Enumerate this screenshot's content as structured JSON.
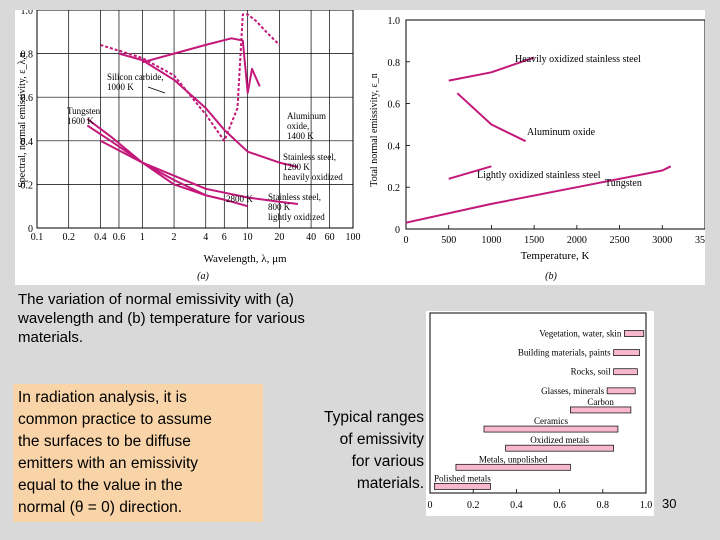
{
  "caption": {
    "line1": "The variation of normal emissivity with (a)",
    "line2": "wavelength and (b) temperature for various",
    "line3": "materials."
  },
  "note": {
    "line1": "In radiation analysis, it is",
    "line2": "common practice to assume",
    "line3": "the surfaces to be diffuse",
    "line4": "emitters with an emissivity",
    "line5": "equal to the value in the",
    "line6": "normal (θ = 0) direction."
  },
  "ranges_caption": {
    "line1": "Typical ranges",
    "line2": "of emissivity",
    "line3": "for various",
    "line4": "materials."
  },
  "slide_number": "30",
  "colors": {
    "curve": "#c3187a",
    "bar_fill": "#f6b7cf",
    "note_bg": "#f9d4a8",
    "page_bg": "#d9d9d9"
  },
  "chart_data": [
    {
      "type": "line",
      "panel_label": "(a)",
      "xlabel": "Wavelength, λ, μm",
      "ylabel": "Spectral, normal emissivity, ε_λ,n",
      "xscale": "log",
      "xlim": [
        0.1,
        100
      ],
      "ylim": [
        0,
        1.0
      ],
      "x_ticks": [
        "0.1",
        "0.2",
        "0.4",
        "0.6",
        "1",
        "2",
        "4",
        "6",
        "10",
        "20",
        "40",
        "60",
        "100"
      ],
      "y_ticks": [
        "0",
        "0.2",
        "0.4",
        "0.6",
        "0.8",
        "1.0"
      ],
      "annotations": [
        "Silicon carbide, 1000 K",
        "Tungsten 1600 K",
        "Aluminum oxide, 1400 K",
        "Stainless steel, 1200 K heavily oxidized",
        "2800 K",
        "Stainless steel, 800 K lightly oxidized"
      ],
      "series": [
        {
          "name": "Silicon carbide, 1000 K",
          "x": [
            1,
            2,
            4,
            7,
            9,
            10,
            11,
            13
          ],
          "y": [
            0.76,
            0.8,
            0.84,
            0.87,
            0.86,
            0.62,
            0.73,
            0.65
          ]
        },
        {
          "name": "Aluminum oxide, 1400 K",
          "x": [
            0.4,
            1,
            2,
            4,
            6,
            8,
            9,
            10,
            12,
            15,
            20
          ],
          "y": [
            0.84,
            0.78,
            0.7,
            0.52,
            0.4,
            0.55,
            0.98,
            0.98,
            0.95,
            0.9,
            0.84
          ]
        },
        {
          "name": "Stainless steel, 1200 K heavily oxidized",
          "x": [
            0.6,
            1,
            2,
            4,
            6,
            10,
            20,
            30
          ],
          "y": [
            0.8,
            0.77,
            0.68,
            0.55,
            0.45,
            0.35,
            0.3,
            0.28
          ]
        },
        {
          "name": "Tungsten 1600 K",
          "x": [
            0.3,
            0.5,
            1,
            2,
            4,
            6,
            10
          ],
          "y": [
            0.5,
            0.42,
            0.3,
            0.22,
            0.15,
            0.13,
            0.1
          ]
        },
        {
          "name": "Tungsten 2800 K",
          "x": [
            0.3,
            0.5,
            1,
            2,
            4,
            6
          ],
          "y": [
            0.47,
            0.4,
            0.3,
            0.2,
            0.15,
            0.13
          ]
        },
        {
          "name": "Stainless steel, 800 K lightly oxidized",
          "x": [
            0.4,
            1,
            2,
            4,
            10,
            20,
            30
          ],
          "y": [
            0.4,
            0.3,
            0.24,
            0.18,
            0.14,
            0.12,
            0.11
          ]
        }
      ]
    },
    {
      "type": "line",
      "panel_label": "(b)",
      "xlabel": "Temperature, K",
      "ylabel": "Total normal emissivity, ε_n",
      "xlim": [
        0,
        3500
      ],
      "ylim": [
        0,
        1.0
      ],
      "x_ticks": [
        "0",
        "500",
        "1000",
        "1500",
        "2000",
        "2500",
        "3000",
        "3500"
      ],
      "y_ticks": [
        "0",
        "0.2",
        "0.4",
        "0.6",
        "0.8",
        "1.0"
      ],
      "series": [
        {
          "name": "Heavily oxidized stainless steel",
          "x": [
            500,
            1000,
            1500
          ],
          "y": [
            0.71,
            0.75,
            0.82
          ]
        },
        {
          "name": "Aluminum oxide",
          "x": [
            600,
            1000,
            1400
          ],
          "y": [
            0.65,
            0.5,
            0.42
          ]
        },
        {
          "name": "Lightly oxidized stainless steel",
          "x": [
            500,
            1000
          ],
          "y": [
            0.24,
            0.3
          ]
        },
        {
          "name": "Tungsten",
          "x": [
            0,
            1000,
            2000,
            3000,
            3100
          ],
          "y": [
            0.03,
            0.12,
            0.2,
            0.28,
            0.3
          ]
        }
      ]
    },
    {
      "type": "bar",
      "orientation": "horizontal",
      "range_bars": true,
      "xlim": [
        0,
        1.0
      ],
      "x_ticks": [
        "0",
        "0.2",
        "0.4",
        "0.6",
        "0.8",
        "1.0"
      ],
      "categories": [
        "Vegetation, water, skin",
        "Building materials, paints",
        "Rocks, soil",
        "Glasses, minerals",
        "Carbon",
        "Ceramics",
        "Oxidized metals",
        "Metals, unpolished",
        "Polished metals"
      ],
      "low": [
        0.9,
        0.85,
        0.85,
        0.82,
        0.65,
        0.25,
        0.35,
        0.12,
        0.02
      ],
      "high": [
        0.99,
        0.97,
        0.96,
        0.95,
        0.93,
        0.87,
        0.85,
        0.65,
        0.28
      ]
    }
  ]
}
